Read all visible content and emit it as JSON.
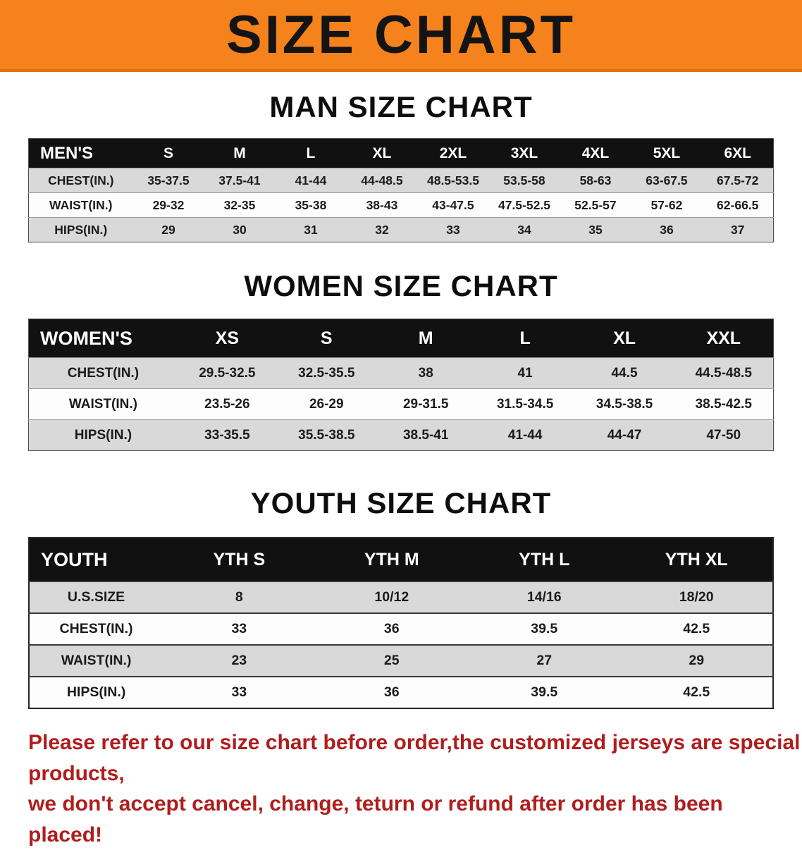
{
  "banner": {
    "title": "SIZE CHART"
  },
  "colors": {
    "banner_bg": "#f5821d",
    "banner_text": "#141414",
    "header_bg": "#111111",
    "header_text": "#ffffff",
    "row_gray": "#d9d9d9",
    "row_white": "#fdfdfd",
    "text": "#1b1b1b",
    "disclaimer": "#b01d1d"
  },
  "sections": {
    "men": {
      "heading": "MAN SIZE CHART",
      "header": [
        "MEN'S",
        "S",
        "M",
        "L",
        "XL",
        "2XL",
        "3XL",
        "4XL",
        "5XL",
        "6XL"
      ],
      "rows": [
        {
          "label": "CHEST(IN.)",
          "cells": [
            "35-37.5",
            "37.5-41",
            "41-44",
            "44-48.5",
            "48.5-53.5",
            "53.5-58",
            "58-63",
            "63-67.5",
            "67.5-72"
          ]
        },
        {
          "label": "WAIST(IN.)",
          "cells": [
            "29-32",
            "32-35",
            "35-38",
            "38-43",
            "43-47.5",
            "47.5-52.5",
            "52.5-57",
            "57-62",
            "62-66.5"
          ]
        },
        {
          "label": "HIPS(IN.)",
          "cells": [
            "29",
            "30",
            "31",
            "32",
            "33",
            "34",
            "35",
            "36",
            "37"
          ]
        }
      ]
    },
    "women": {
      "heading": "WOMEN SIZE CHART",
      "header": [
        "WOMEN'S",
        "XS",
        "S",
        "M",
        "L",
        "XL",
        "XXL"
      ],
      "rows": [
        {
          "label": "CHEST(IN.)",
          "cells": [
            "29.5-32.5",
            "32.5-35.5",
            "38",
            "41",
            "44.5",
            "44.5-48.5"
          ]
        },
        {
          "label": "WAIST(IN.)",
          "cells": [
            "23.5-26",
            "26-29",
            "29-31.5",
            "31.5-34.5",
            "34.5-38.5",
            "38.5-42.5"
          ]
        },
        {
          "label": "HIPS(IN.)",
          "cells": [
            "33-35.5",
            "35.5-38.5",
            "38.5-41",
            "41-44",
            "44-47",
            "47-50"
          ]
        }
      ]
    },
    "youth": {
      "heading": "YOUTH SIZE CHART",
      "header": [
        "YOUTH",
        "YTH S",
        "YTH M",
        "YTH L",
        "YTH XL"
      ],
      "rows": [
        {
          "label": "U.S.SIZE",
          "cells": [
            "8",
            "10/12",
            "14/16",
            "18/20"
          ]
        },
        {
          "label": "CHEST(IN.)",
          "cells": [
            "33",
            "36",
            "39.5",
            "42.5"
          ]
        },
        {
          "label": "WAIST(IN.)",
          "cells": [
            "23",
            "25",
            "27",
            "29"
          ]
        },
        {
          "label": "HIPS(IN.)",
          "cells": [
            "33",
            "36",
            "39.5",
            "42.5"
          ]
        }
      ]
    }
  },
  "disclaimer": {
    "line1": "Please refer to our size chart before order,the customized jerseys are special products,",
    "line2": "we don't accept cancel, change, teturn or refund after order has been placed!"
  }
}
